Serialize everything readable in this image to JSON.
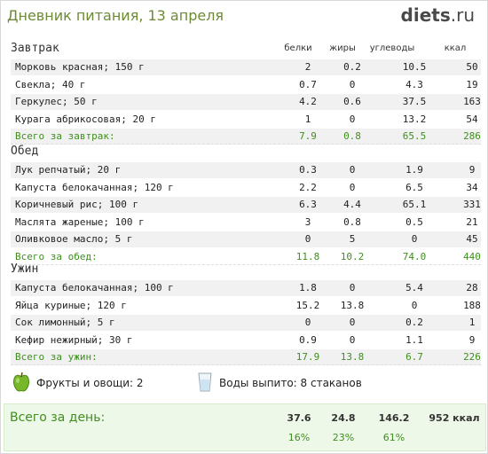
{
  "title": "Дневник питания, 13 апреля",
  "logo": {
    "name": "diets",
    "tld": ".ru"
  },
  "columns": [
    "белки",
    "жиры",
    "углеводы",
    "ккал"
  ],
  "meals": [
    {
      "name": "Завтрак",
      "items": [
        {
          "name": "Морковь красная; 150 г",
          "b": "2",
          "f": "0.2",
          "c": "10.5",
          "k": "50"
        },
        {
          "name": "Свекла; 40 г",
          "b": "0.7",
          "f": "0",
          "c": "4.3",
          "k": "19"
        },
        {
          "name": "Геркулес; 50 г",
          "b": "4.2",
          "f": "0.6",
          "c": "37.5",
          "k": "163"
        },
        {
          "name": "Курага абрикосовая; 20 г",
          "b": "1",
          "f": "0",
          "c": "13.2",
          "k": "54"
        }
      ],
      "total": {
        "name": "Всего за завтрак:",
        "b": "7.9",
        "f": "0.8",
        "c": "65.5",
        "k": "286"
      }
    },
    {
      "name": "Обед",
      "items": [
        {
          "name": "Лук репчатый; 20 г",
          "b": "0.3",
          "f": "0",
          "c": "1.9",
          "k": "9"
        },
        {
          "name": "Капуста белокачанная; 120 г",
          "b": "2.2",
          "f": "0",
          "c": "6.5",
          "k": "34"
        },
        {
          "name": "Коричневый рис; 100 г",
          "b": "6.3",
          "f": "4.4",
          "c": "65.1",
          "k": "331"
        },
        {
          "name": "Маслята жареные; 100 г",
          "b": "3",
          "f": "0.8",
          "c": "0.5",
          "k": "21"
        },
        {
          "name": "Оливковое масло; 5 г",
          "b": "0",
          "f": "5",
          "c": "0",
          "k": "45"
        }
      ],
      "total": {
        "name": "Всего за обед:",
        "b": "11.8",
        "f": "10.2",
        "c": "74.0",
        "k": "440"
      }
    },
    {
      "name": "Ужин",
      "items": [
        {
          "name": "Капуста белокачанная; 100 г",
          "b": "1.8",
          "f": "0",
          "c": "5.4",
          "k": "28"
        },
        {
          "name": "Яйца куриные; 120 г",
          "b": "15.2",
          "f": "13.8",
          "c": "0",
          "k": "188"
        },
        {
          "name": "Сок лимонный; 5 г",
          "b": "0",
          "f": "0",
          "c": "0.2",
          "k": "1"
        },
        {
          "name": "Кефир нежирный; 30 г",
          "b": "0.9",
          "f": "0",
          "c": "1.1",
          "k": "9"
        }
      ],
      "total": {
        "name": "Всего за ужин:",
        "b": "17.9",
        "f": "13.8",
        "c": "6.7",
        "k": "226"
      }
    }
  ],
  "extras": {
    "fruits": "Фрукты и овощи: 2",
    "water": "Воды выпито: 8 стаканов",
    "fruits_icon": "apple-icon",
    "water_icon": "glass-icon"
  },
  "day_total": {
    "label": "Всего за день:",
    "b": "37.6",
    "f": "24.8",
    "c": "146.2",
    "k": "952 ккал",
    "pb": "16%",
    "pf": "23%",
    "pc": "61%"
  },
  "colors": {
    "accent": "#6d8a36",
    "total_green": "#3f8f1f",
    "day_bg": "#eef8e8"
  }
}
